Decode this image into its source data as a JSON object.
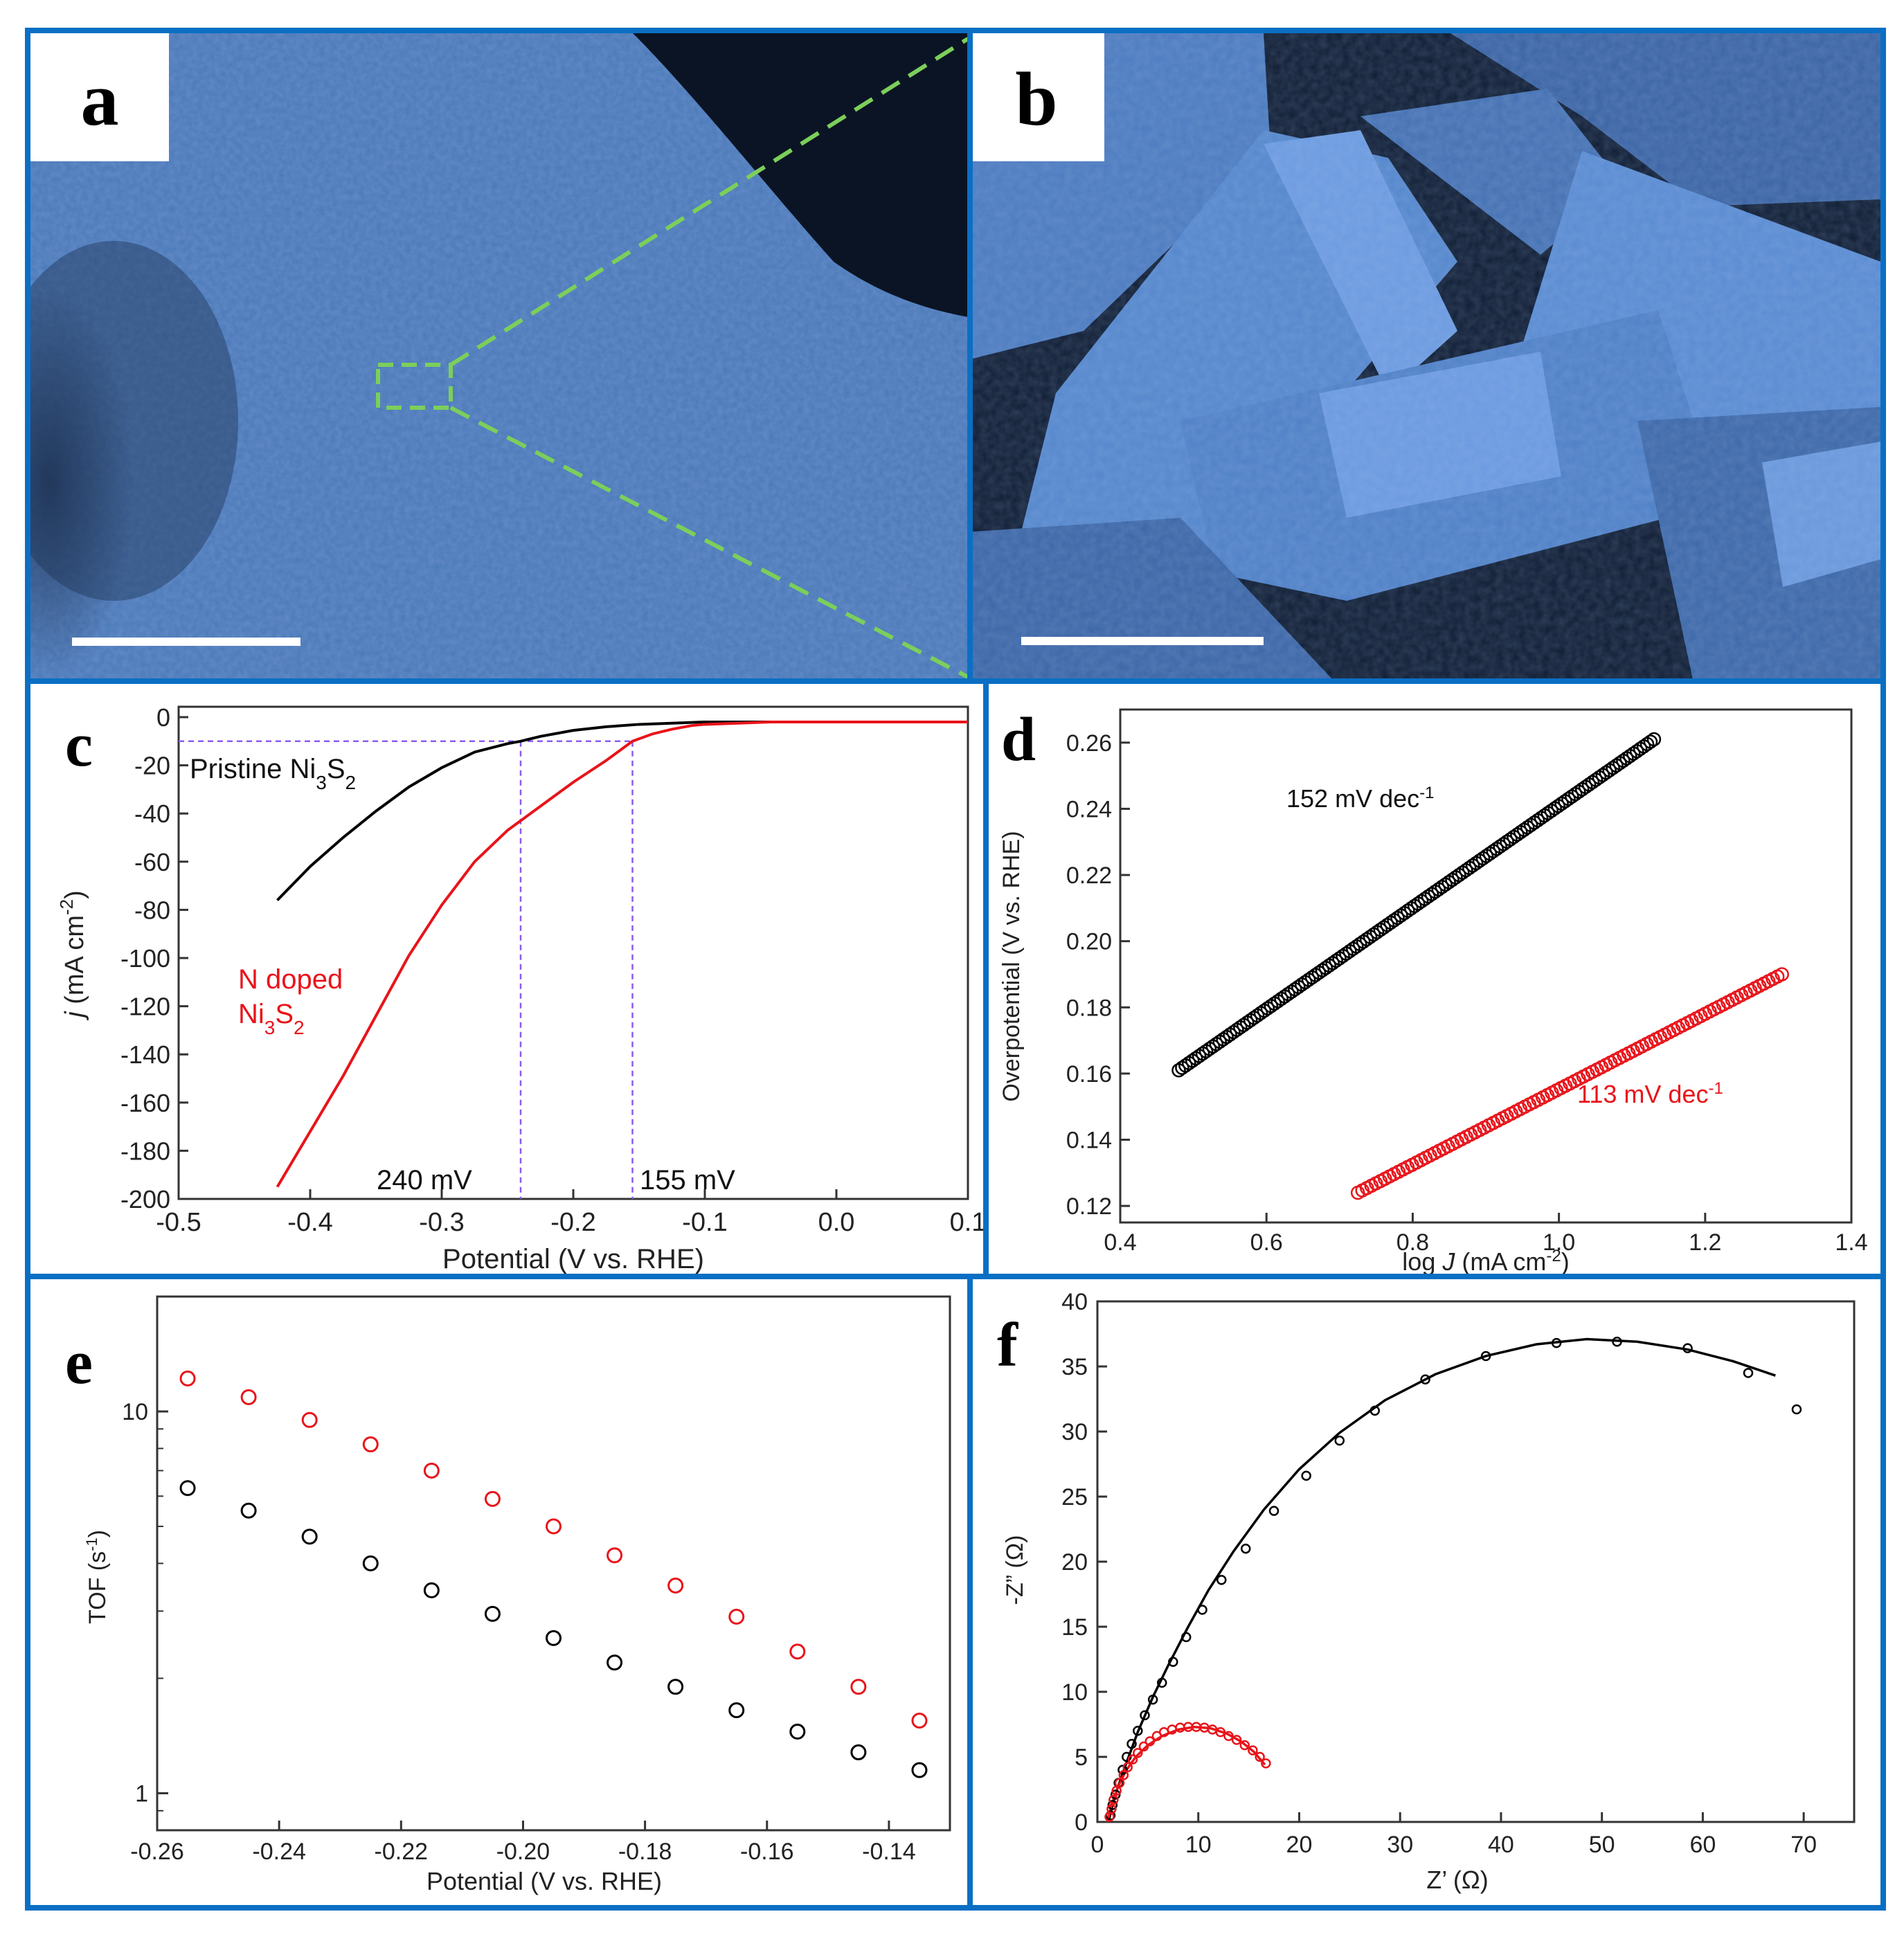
{
  "panels": {
    "a": {
      "label": "a"
    },
    "b": {
      "label": "b"
    },
    "c": {
      "label": "c"
    },
    "d": {
      "label": "d"
    },
    "e": {
      "label": "e"
    },
    "f": {
      "label": "f"
    }
  },
  "colors": {
    "border": "#0a6fc4",
    "sem_blue": "#4a78b8",
    "black_series": "#000000",
    "red_series": "#e8141a",
    "guide": "#8a5cf0",
    "zoom_box": "#7ccf5a"
  },
  "chart_data": [
    {
      "panel": "c",
      "type": "line",
      "xlabel": "Potential (V vs. RHE)",
      "ylabel_main": "j",
      "ylabel_unit": "(mA cm",
      "ylabel_exp": "-2",
      "ylabel_close": ")",
      "xlim": [
        -0.5,
        0.1
      ],
      "ylim": [
        -200,
        0
      ],
      "xticks": [
        "-0.5",
        "-0.4",
        "-0.3",
        "-0.2",
        "-0.1",
        "0.0",
        "0.1"
      ],
      "yticks": [
        "0",
        "-20",
        "-40",
        "-60",
        "-80",
        "-100",
        "-120",
        "-140",
        "-160",
        "-180",
        "-200"
      ],
      "series": [
        {
          "color": "#000000",
          "x": [
            -0.425,
            -0.4,
            -0.375,
            -0.35,
            -0.325,
            -0.3,
            -0.275,
            -0.25,
            -0.24,
            -0.225,
            -0.2,
            -0.175,
            -0.15,
            -0.125,
            -0.1,
            -0.05,
            0.0,
            0.05,
            0.1
          ],
          "y": [
            -76,
            -62,
            -50,
            -39,
            -29,
            -21,
            -14.5,
            -11,
            -10,
            -8,
            -5.5,
            -4,
            -3,
            -2.5,
            -2,
            -2,
            -2,
            -2,
            -2
          ]
        },
        {
          "color": "#e8141a",
          "x": [
            -0.425,
            -0.4,
            -0.375,
            -0.35,
            -0.325,
            -0.3,
            -0.275,
            -0.25,
            -0.24,
            -0.225,
            -0.2,
            -0.175,
            -0.155,
            -0.14,
            -0.125,
            -0.11,
            -0.1,
            -0.075,
            -0.05,
            0.0,
            0.05,
            0.1
          ],
          "y": [
            -195,
            -172,
            -149,
            -124,
            -99,
            -78,
            -60,
            -47,
            -43,
            -37,
            -27,
            -18,
            -10,
            -7,
            -5,
            -3.5,
            -3,
            -2.5,
            -2,
            -2,
            -2,
            -2
          ]
        }
      ],
      "labels": {
        "pristine_prefix": "Pristine Ni",
        "pristine_sub1": "3",
        "pristine_mid": "S",
        "pristine_sub2": "2",
        "ndoped_line1": "N doped",
        "ndoped_prefix": "Ni",
        "ndoped_sub1": "3",
        "ndoped_mid": "S",
        "ndoped_sub2": "2",
        "ann1": "240 mV",
        "ann2": "155 mV"
      },
      "guides": {
        "y": -10,
        "x1": -0.24,
        "x2": -0.155
      }
    },
    {
      "panel": "d",
      "type": "scatter",
      "xlabel_pre": "log ",
      "xlabel_var": "J",
      "xlabel_unit": " (mA cm",
      "xlabel_exp": "-2",
      "xlabel_close": ")",
      "ylabel": "Overpotential (V vs. RHE)",
      "xlim": [
        0.4,
        1.4
      ],
      "ylim": [
        0.115,
        0.27
      ],
      "xticks": [
        "0.4",
        "0.6",
        "0.8",
        "1.0",
        "1.2",
        "1.4"
      ],
      "yticks": [
        "0.12",
        "0.14",
        "0.16",
        "0.18",
        "0.20",
        "0.22",
        "0.24",
        "0.26"
      ],
      "series": [
        {
          "color": "#000000",
          "x_start": 0.48,
          "x_end": 1.13,
          "y_start": 0.161,
          "y_end": 0.261,
          "count": 140
        },
        {
          "color": "#e8141a",
          "x_start": 0.725,
          "x_end": 1.305,
          "y_start": 0.124,
          "y_end": 0.19,
          "count": 95
        }
      ],
      "ann1_main": "152 mV dec",
      "ann1_exp": "-1",
      "ann2_main": "113 mV dec",
      "ann2_exp": "-1"
    },
    {
      "panel": "e",
      "type": "scatter",
      "xlabel": "Potential (V vs. RHE)",
      "ylabel_main": "TOF (s",
      "ylabel_exp": "-1",
      "ylabel_close": ")",
      "xlim": [
        -0.26,
        -0.13
      ],
      "ylim_log": [
        0.8,
        20
      ],
      "xticks": [
        "-0.26",
        "-0.24",
        "-0.22",
        "-0.20",
        "-0.18",
        "-0.16",
        "-0.14"
      ],
      "yticks": [
        "1",
        "10"
      ],
      "series": [
        {
          "color": "#e8141a",
          "x": [
            -0.255,
            -0.245,
            -0.235,
            -0.225,
            -0.215,
            -0.205,
            -0.195,
            -0.185,
            -0.175,
            -0.165,
            -0.155,
            -0.145,
            -0.135
          ],
          "y": [
            12.2,
            10.9,
            9.5,
            8.2,
            7.0,
            5.9,
            5.0,
            4.2,
            3.5,
            2.9,
            2.35,
            1.9,
            1.55
          ]
        },
        {
          "color": "#000000",
          "x": [
            -0.255,
            -0.245,
            -0.235,
            -0.225,
            -0.215,
            -0.205,
            -0.195,
            -0.185,
            -0.175,
            -0.165,
            -0.155,
            -0.145,
            -0.135
          ],
          "y": [
            6.3,
            5.5,
            4.7,
            4.0,
            3.4,
            2.95,
            2.55,
            2.2,
            1.9,
            1.65,
            1.45,
            1.28,
            1.15
          ]
        }
      ]
    },
    {
      "panel": "f",
      "type": "scatter",
      "xlabel_main": "Z’ (Ω)",
      "ylabel_main": "-Z” (Ω)",
      "xlim": [
        0,
        75
      ],
      "ylim": [
        0,
        40
      ],
      "xticks": [
        "0",
        "10",
        "20",
        "30",
        "40",
        "50",
        "60",
        "70"
      ],
      "yticks": [
        "0",
        "5",
        "10",
        "15",
        "20",
        "25",
        "30",
        "35",
        "40"
      ],
      "series": [
        {
          "color": "#000000",
          "x": [
            1.3,
            1.5,
            1.8,
            2.1,
            2.5,
            2.9,
            3.4,
            4.0,
            4.7,
            5.5,
            6.4,
            7.5,
            8.8,
            10.4,
            12.3,
            14.7,
            17.5,
            20.7,
            24.0,
            27.5,
            32.5,
            38.5,
            45.5,
            51.5,
            58.5,
            64.5,
            69.3
          ],
          "y": [
            0.5,
            1.3,
            2.1,
            3.0,
            4.0,
            5.0,
            6.0,
            7.0,
            8.2,
            9.4,
            10.7,
            12.3,
            14.2,
            16.3,
            18.6,
            21.0,
            23.9,
            26.6,
            29.3,
            31.6,
            34.0,
            35.8,
            36.8,
            36.9,
            36.4,
            34.5,
            31.7
          ]
        },
        {
          "color": "#e8141a",
          "x": [
            1.2,
            1.4,
            1.6,
            1.9,
            2.2,
            2.6,
            3.0,
            3.5,
            4.0,
            4.6,
            5.2,
            5.9,
            6.6,
            7.4,
            8.2,
            9.0,
            9.8,
            10.6,
            11.4,
            12.2,
            13.0,
            13.8,
            14.6,
            15.4,
            16.1,
            16.7
          ],
          "y": [
            0.4,
            1.0,
            1.7,
            2.4,
            3.0,
            3.6,
            4.2,
            4.8,
            5.3,
            5.8,
            6.2,
            6.6,
            6.9,
            7.1,
            7.25,
            7.3,
            7.3,
            7.25,
            7.1,
            6.9,
            6.6,
            6.3,
            5.9,
            5.5,
            5.0,
            4.5
          ]
        }
      ],
      "fit_black": {
        "x": [
          1.1,
          1.5,
          2.0,
          3.0,
          4.0,
          5.5,
          7.0,
          9.0,
          11.0,
          13.5,
          16.5,
          20.0,
          24.0,
          28.5,
          33.5,
          38.5,
          43.5,
          48.5,
          53.5,
          58.5,
          63.0,
          67.2
        ],
        "y": [
          0,
          1.3,
          2.6,
          4.8,
          6.9,
          9.6,
          12.0,
          15.0,
          17.8,
          20.8,
          24.0,
          27.1,
          29.9,
          32.4,
          34.4,
          35.8,
          36.7,
          37.1,
          36.9,
          36.3,
          35.4,
          34.3
        ]
      },
      "fit_red": {
        "x": [
          1.0,
          1.4,
          2.0,
          2.8,
          3.8,
          5.0,
          6.4,
          8.0,
          9.6,
          11.2,
          12.8,
          14.2,
          15.5,
          16.6
        ],
        "y": [
          0,
          1.3,
          2.6,
          3.9,
          5.0,
          5.9,
          6.6,
          7.1,
          7.3,
          7.2,
          6.8,
          6.2,
          5.4,
          4.4
        ]
      }
    }
  ]
}
